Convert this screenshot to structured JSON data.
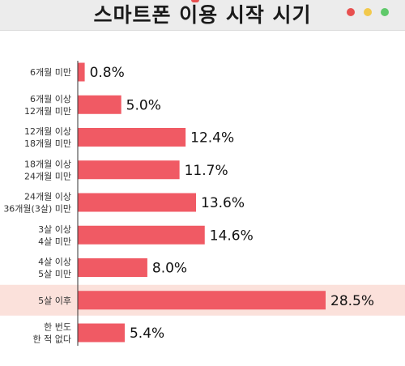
{
  "header": {
    "title": "스마트폰 이용 시작 시기",
    "dots": [
      {
        "name": "red",
        "color": "#e8504f"
      },
      {
        "name": "yellow",
        "color": "#f2c94c"
      },
      {
        "name": "green",
        "color": "#5fc96a"
      }
    ]
  },
  "colors": {
    "bar": "#f05a64",
    "highlight_band": "#fbe1db",
    "axis": "#333333"
  },
  "chart_data": {
    "type": "bar",
    "orientation": "horizontal",
    "categories": [
      [
        "6개월 미만"
      ],
      [
        "6개월 이상",
        "12개월 미만"
      ],
      [
        "12개월 이상",
        "18개월 미만"
      ],
      [
        "18개월 이상",
        "24개월 미만"
      ],
      [
        "24개월 이상",
        "36개월(3살) 미만"
      ],
      [
        "3살 이상",
        "4살 미만"
      ],
      [
        "4살 이상",
        "5살 미만"
      ],
      [
        "5살 이후"
      ],
      [
        "한 번도",
        "한 적 없다"
      ]
    ],
    "values": [
      0.8,
      5.0,
      12.4,
      11.7,
      13.6,
      14.6,
      8.0,
      28.5,
      5.4
    ],
    "value_labels": [
      "0.8%",
      "5.0%",
      "12.4%",
      "11.7%",
      "13.6%",
      "14.6%",
      "8.0%",
      "28.5%",
      "5.4%"
    ],
    "highlighted_category_index": 7,
    "xlim": [
      0,
      28.5
    ],
    "grid": false,
    "legend": "none"
  }
}
